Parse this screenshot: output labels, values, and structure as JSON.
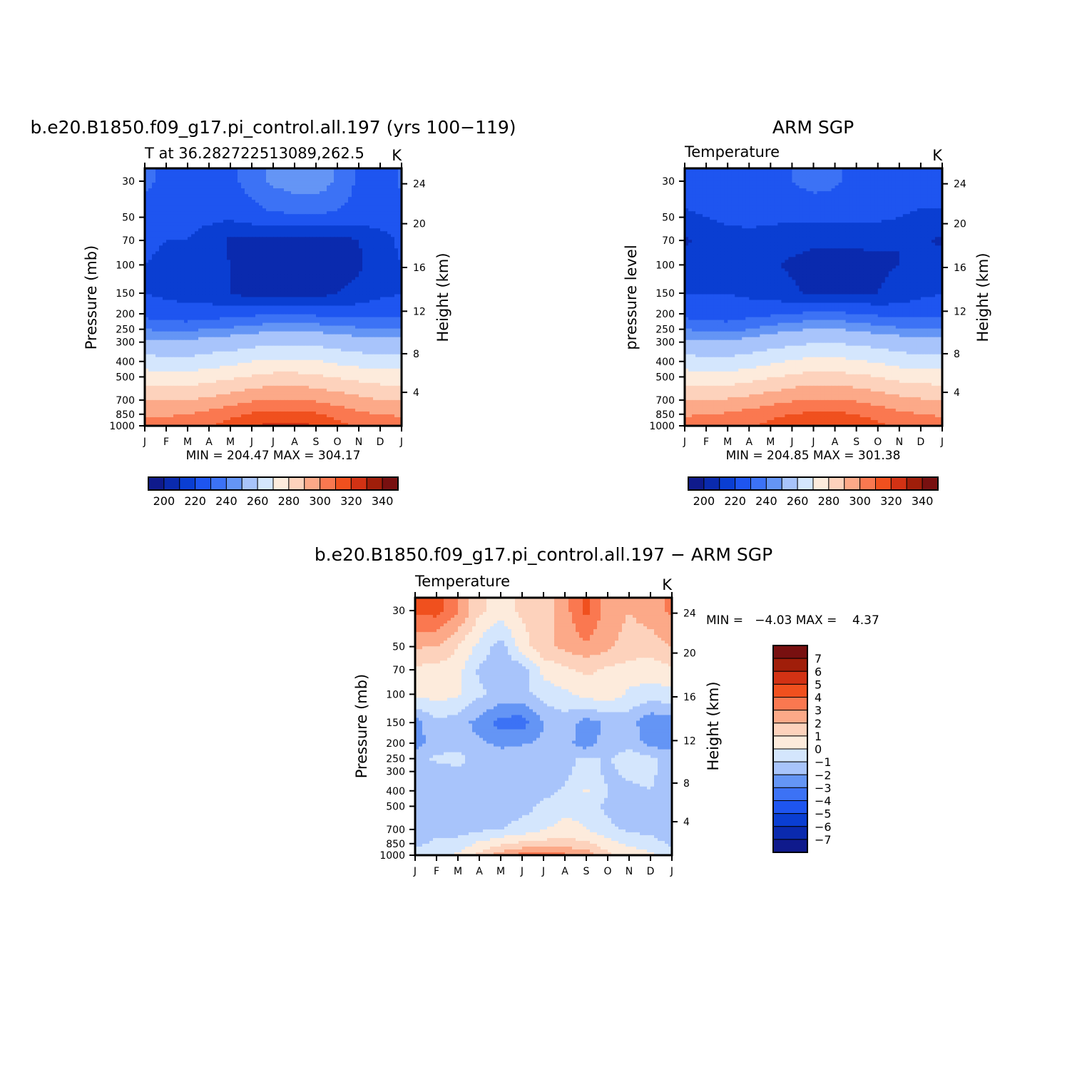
{
  "chart_data": [
    {
      "type": "contour",
      "title": "b.e20.B1850.f09_g17.pi_control.all.197 (yrs 100−119)",
      "subtitle_left": "T at 36.282722513089,262.5",
      "subtitle_right": "K",
      "ylabel_left": "Pressure (mb)",
      "ylabel_right": "Height (km)",
      "x_ticks": [
        "J",
        "F",
        "M",
        "A",
        "M",
        "J",
        "J",
        "A",
        "S",
        "O",
        "N",
        "D",
        "J"
      ],
      "pressure_ticks": [
        "30",
        "50",
        "70",
        "100",
        "150",
        "200",
        "250",
        "300",
        "400",
        "500",
        "700",
        "850",
        "1000"
      ],
      "height_ticks": [
        "24",
        "20",
        "16",
        "12",
        "8",
        "4"
      ],
      "stats": "MIN = 204.47 MAX = 304.17",
      "colorbar_labels": [
        "200",
        "220",
        "240",
        "260",
        "280",
        "300",
        "320",
        "340"
      ],
      "z": [
        [
          221,
          219,
          219,
          218,
          219,
          222,
          226,
          228,
          229,
          224,
          219,
          216,
          221
        ],
        [
          218,
          217,
          216,
          216,
          216,
          218,
          219,
          219,
          219,
          219,
          218,
          217,
          218
        ],
        [
          216,
          215,
          215,
          213,
          209,
          208,
          208,
          208,
          208,
          208,
          210,
          213,
          216
        ],
        [
          215,
          214,
          214,
          212,
          210,
          207,
          206,
          206,
          206,
          207,
          209,
          213,
          215
        ],
        [
          215,
          214,
          214,
          213,
          210,
          208,
          207,
          207,
          208,
          210,
          212,
          214,
          215
        ],
        [
          218,
          217,
          216,
          217,
          218,
          219,
          219,
          219,
          219,
          218,
          218,
          218,
          218
        ],
        [
          225,
          224,
          224,
          225,
          226,
          227,
          229,
          229,
          228,
          227,
          226,
          225,
          225
        ],
        [
          232,
          231,
          231,
          233,
          234,
          236,
          238,
          238,
          237,
          235,
          233,
          232,
          232
        ],
        [
          244,
          243,
          243,
          245,
          247,
          250,
          252,
          252,
          251,
          248,
          246,
          244,
          244
        ],
        [
          255,
          254,
          254,
          256,
          258,
          261,
          263,
          263,
          262,
          259,
          257,
          255,
          255
        ],
        [
          270,
          269,
          270,
          272,
          275,
          279,
          281,
          281,
          279,
          276,
          273,
          270,
          270
        ],
        [
          279,
          279,
          280,
          283,
          287,
          291,
          293,
          293,
          291,
          286,
          282,
          280,
          279
        ],
        [
          284,
          284,
          285,
          289,
          294,
          299,
          303,
          303,
          300,
          293,
          288,
          285,
          284
        ]
      ]
    },
    {
      "type": "contour",
      "title": "ARM SGP",
      "subtitle_left": "Temperature",
      "subtitle_right": "K",
      "ylabel_left": "pressure level",
      "ylabel_right": "Height (km)",
      "x_ticks": [
        "J",
        "F",
        "M",
        "A",
        "M",
        "J",
        "J",
        "A",
        "S",
        "O",
        "N",
        "D",
        "J"
      ],
      "pressure_ticks": [
        "30",
        "50",
        "70",
        "100",
        "150",
        "200",
        "250",
        "300",
        "400",
        "500",
        "700",
        "850",
        "1000"
      ],
      "height_ticks": [
        "24",
        "20",
        "16",
        "12",
        "8",
        "4"
      ],
      "stats": "MIN = 204.85 MAX = 301.38",
      "colorbar_labels": [
        "200",
        "220",
        "240",
        "260",
        "280",
        "300",
        "320",
        "340"
      ],
      "z": [
        [
          218,
          218,
          218,
          218,
          218,
          220,
          222,
          221,
          218,
          218,
          218,
          218,
          218
        ],
        [
          214,
          215,
          216,
          216,
          216,
          216,
          216,
          216,
          216,
          216,
          215,
          214,
          214
        ],
        [
          209,
          212,
          213,
          214,
          213,
          212,
          211,
          211,
          211,
          211,
          210,
          211,
          209
        ],
        [
          213,
          214,
          214,
          213,
          211,
          209,
          208,
          208,
          208,
          209,
          210,
          212,
          213
        ],
        [
          215,
          215,
          215,
          214,
          213,
          211,
          209,
          209,
          210,
          210,
          212,
          214,
          215
        ],
        [
          218,
          217,
          217,
          218,
          219,
          220,
          221,
          221,
          220,
          219,
          218,
          218,
          218
        ],
        [
          225,
          224,
          223,
          225,
          227,
          229,
          230,
          230,
          229,
          227,
          226,
          225,
          225
        ],
        [
          232,
          231,
          231,
          233,
          235,
          237,
          239,
          239,
          238,
          236,
          234,
          232,
          232
        ],
        [
          244,
          243,
          243,
          245,
          248,
          251,
          253,
          253,
          251,
          249,
          246,
          244,
          244
        ],
        [
          255,
          254,
          254,
          256,
          259,
          262,
          264,
          264,
          262,
          260,
          257,
          255,
          255
        ],
        [
          270,
          270,
          271,
          273,
          276,
          279,
          281,
          281,
          279,
          276,
          273,
          271,
          270
        ],
        [
          279,
          280,
          281,
          284,
          287,
          290,
          292,
          292,
          290,
          286,
          282,
          280,
          279
        ],
        [
          284,
          285,
          286,
          289,
          293,
          297,
          300,
          300,
          297,
          292,
          288,
          285,
          284
        ]
      ]
    },
    {
      "type": "contour",
      "title": "b.e20.B1850.f09_g17.pi_control.all.197 − ARM SGP",
      "subtitle_left": "Temperature",
      "subtitle_right": "K",
      "ylabel_left": "Pressure (mb)",
      "ylabel_right": "Height (km)",
      "x_ticks": [
        "J",
        "F",
        "M",
        "A",
        "M",
        "J",
        "J",
        "A",
        "S",
        "O",
        "N",
        "D",
        "J"
      ],
      "pressure_ticks": [
        "30",
        "50",
        "70",
        "100",
        "150",
        "200",
        "250",
        "300",
        "400",
        "500",
        "700",
        "850",
        "1000"
      ],
      "height_ticks": [
        "24",
        "20",
        "16",
        "12",
        "8",
        "4"
      ],
      "stats": "MIN =   −4.03 MAX =    4.37",
      "colorbar_labels": [
        "7",
        "6",
        "5",
        "4",
        "3",
        "2",
        "1",
        "0",
        "−1",
        "−2",
        "−3",
        "−4",
        "−5",
        "−6",
        "−7"
      ],
      "z": [
        [
          4.2,
          4.4,
          3.1,
          1.2,
          0.5,
          1.2,
          1.5,
          2.6,
          4.3,
          2.5,
          2.0,
          2.5,
          3.2
        ],
        [
          2.1,
          2.0,
          1.0,
          -0.3,
          -1.5,
          0.5,
          1.8,
          2.2,
          2.8,
          2.2,
          1.6,
          1.5,
          2.0
        ],
        [
          0.8,
          0.6,
          0.4,
          -1.2,
          -1.6,
          -1.5,
          0.3,
          0.8,
          1.2,
          0.8,
          0.6,
          0.4,
          0.8
        ],
        [
          0.3,
          0.4,
          0.2,
          -0.8,
          -1.3,
          -1.4,
          -0.5,
          -0.2,
          0.4,
          0.6,
          -0.2,
          -0.4,
          -0.3
        ],
        [
          -2.5,
          -1.2,
          -1.5,
          -2.4,
          -3.4,
          -3.5,
          -2.0,
          -1.5,
          -2.4,
          -1.8,
          -1.5,
          -2.8,
          -2.5
        ],
        [
          -2.4,
          -1.5,
          -1.6,
          -1.8,
          -2.2,
          -2.1,
          -1.8,
          -1.6,
          -2.6,
          -1.5,
          -1.4,
          -2.4,
          -2.4
        ],
        [
          -1.5,
          -0.8,
          -0.6,
          -1.5,
          -1.6,
          -1.4,
          -1.5,
          -1.3,
          -0.8,
          -1.1,
          -0.4,
          -0.8,
          -1.5
        ],
        [
          -1.5,
          -1.4,
          -1.3,
          -1.6,
          -1.6,
          -1.6,
          -1.4,
          -1.2,
          -0.6,
          -1.2,
          -0.8,
          -0.8,
          -1.5
        ],
        [
          -1.6,
          -1.5,
          -1.5,
          -1.6,
          -1.6,
          -1.5,
          -1.3,
          -0.9,
          0.2,
          -1.0,
          -1.2,
          -1.0,
          -1.6
        ],
        [
          -1.8,
          -1.6,
          -1.6,
          -1.5,
          -1.6,
          -1.4,
          -0.8,
          -0.5,
          -0.6,
          -1.2,
          -1.3,
          -1.3,
          -1.8
        ],
        [
          -1.6,
          -1.2,
          -1.5,
          -1.2,
          -1.0,
          -0.6,
          -0.1,
          0.5,
          0.1,
          -0.8,
          -1.2,
          -1.3,
          -1.6
        ],
        [
          -1.2,
          -0.8,
          -0.6,
          0.2,
          0.8,
          1.2,
          1.4,
          1.4,
          1.2,
          0.4,
          -0.2,
          -0.6,
          -1.2
        ],
        [
          -0.6,
          -0.3,
          0.2,
          1.3,
          2.6,
          3.4,
          3.8,
          3.2,
          2.8,
          1.2,
          0.6,
          0.2,
          -0.6
        ]
      ]
    }
  ],
  "colors": {
    "abs_palette": [
      "#0f1a8c",
      "#0a2aae",
      "#0a3ed2",
      "#1e55f0",
      "#3c72f5",
      "#6495f5",
      "#a8c4fb",
      "#d4e6fd",
      "#fdebdc",
      "#fdd2bc",
      "#fca988",
      "#fa7850",
      "#f0501e",
      "#d23214",
      "#a01e0a",
      "#781010"
    ],
    "diff_palette": [
      "#0f1a8c",
      "#0a2aae",
      "#0a3ed2",
      "#1e55f0",
      "#3c72f5",
      "#6495f5",
      "#a8c4fb",
      "#d4e6fd",
      "#fdebdc",
      "#fdd2bc",
      "#fca988",
      "#fa7850",
      "#f0501e",
      "#d23214",
      "#a01e0a",
      "#781010"
    ]
  }
}
